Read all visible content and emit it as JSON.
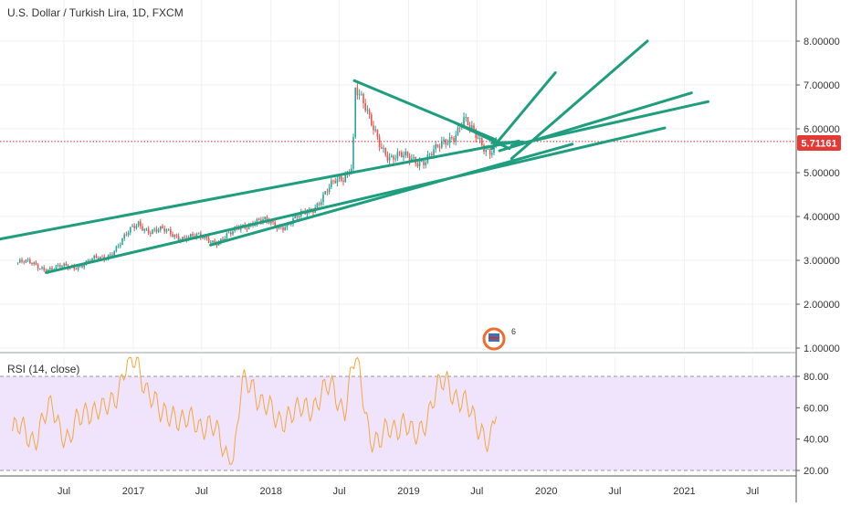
{
  "header": {
    "symbol_title": "U.S. Dollar / Turkish Lira, 1D, FXCM"
  },
  "price_tag": {
    "value": "5.71161",
    "color": "#e53935"
  },
  "watermark": {
    "badge": "6"
  },
  "rsi_panel": {
    "label": "RSI (14, close)"
  },
  "colors": {
    "trendline": "#1e9e7e",
    "up_candle": "#26a69a",
    "down_candle": "#ef5350",
    "rsi_line": "#f5a742",
    "rsi_band": "#efe4fb",
    "price_line": "#d32f2f"
  },
  "chart_data": [
    {
      "type": "candlestick",
      "title": "U.S. Dollar / Turkish Lira, 1D, FXCM",
      "x_ticks": [
        "Jul",
        "2017",
        "Jul",
        "2018",
        "Jul",
        "2019",
        "Jul",
        "2020",
        "Jul",
        "2021",
        "Jul"
      ],
      "y_ticks": [
        "1.00000",
        "2.00000",
        "3.00000",
        "4.00000",
        "5.00000",
        "6.00000",
        "7.00000",
        "8.00000"
      ],
      "ylim": [
        1.0,
        8.9
      ],
      "last_price": 5.71161,
      "grid": true,
      "series": [
        {
          "name": "price",
          "x": [
            "2016-03-01",
            "2016-04-15",
            "2016-06-01",
            "2016-07-15",
            "2016-09-01",
            "2016-10-15",
            "2016-11-15",
            "2016-12-15",
            "2017-01-15",
            "2017-02-15",
            "2017-03-15",
            "2017-04-15",
            "2017-05-15",
            "2017-06-15",
            "2017-07-15",
            "2017-08-15",
            "2017-09-15",
            "2017-10-15",
            "2017-11-15",
            "2017-12-15",
            "2018-01-15",
            "2018-02-15",
            "2018-03-15",
            "2018-04-15",
            "2018-05-15",
            "2018-06-15",
            "2018-07-10",
            "2018-08-05",
            "2018-08-13",
            "2018-09-01",
            "2018-09-20",
            "2018-10-15",
            "2018-11-15",
            "2018-12-15",
            "2019-01-15",
            "2019-02-15",
            "2019-03-15",
            "2019-04-15",
            "2019-05-15",
            "2019-05-25",
            "2019-06-15",
            "2019-07-15",
            "2019-08-05",
            "2019-08-25"
          ],
          "y": [
            2.95,
            2.9,
            2.8,
            2.85,
            2.95,
            3.05,
            3.3,
            3.55,
            3.85,
            3.7,
            3.65,
            3.6,
            3.55,
            3.5,
            3.5,
            3.45,
            3.55,
            3.8,
            3.9,
            3.85,
            3.8,
            3.85,
            3.95,
            4.15,
            4.45,
            4.7,
            4.85,
            5.3,
            7.05,
            6.55,
            6.1,
            5.75,
            5.35,
            5.3,
            5.35,
            5.3,
            5.45,
            5.8,
            6.05,
            6.2,
            5.9,
            5.7,
            5.55,
            5.71
          ]
        }
      ],
      "trendlines": [
        {
          "from": [
            "2016-01-10",
            3.48
          ],
          "to": [
            "2019-10-20",
            5.72
          ]
        },
        {
          "from": [
            "2016-05-15",
            2.72
          ],
          "to": [
            "2020-11-10",
            6.02
          ]
        },
        {
          "from": [
            "2017-07-25",
            3.35
          ],
          "to": [
            "2020-03-10",
            5.65
          ]
        },
        {
          "from": [
            "2019-10-01",
            5.32
          ],
          "to": [
            "2020-09-25",
            8.0
          ]
        },
        {
          "from": [
            "2019-08-10",
            5.55
          ],
          "to": [
            "2020-01-25",
            7.28
          ]
        },
        {
          "from": [
            "2019-08-30",
            5.5
          ],
          "to": [
            "2021-01-20",
            6.82
          ]
        },
        {
          "from": [
            "2019-10-01",
            5.62
          ],
          "to": [
            "2021-03-05",
            6.62
          ]
        },
        {
          "from": [
            "2018-08-10",
            7.1
          ],
          "to": [
            "2019-08-20",
            5.75
          ]
        },
        {
          "from": [
            "2019-05-01",
            6.15
          ],
          "to": [
            "2019-09-25",
            5.55
          ]
        },
        {
          "from": [
            "2019-08-10",
            5.68
          ],
          "to": [
            "2019-11-01",
            5.7
          ]
        }
      ]
    },
    {
      "type": "line",
      "title": "RSI (14, close)",
      "y_ticks": [
        "20.00",
        "40.00",
        "60.00",
        "80.00"
      ],
      "ylim": [
        15,
        95
      ],
      "bands": [
        20,
        80
      ],
      "series": [
        {
          "name": "RSI (14, close)",
          "x": [
            "2016-03-01",
            "2016-04-15",
            "2016-06-01",
            "2016-07-15",
            "2016-09-01",
            "2016-10-15",
            "2016-11-15",
            "2016-12-10",
            "2017-01-10",
            "2017-02-15",
            "2017-03-15",
            "2017-04-15",
            "2017-05-15",
            "2017-06-15",
            "2017-07-15",
            "2017-08-15",
            "2017-09-10",
            "2017-09-25",
            "2017-10-15",
            "2017-11-15",
            "2017-12-15",
            "2018-01-15",
            "2018-02-15",
            "2018-03-15",
            "2018-04-15",
            "2018-05-15",
            "2018-06-15",
            "2018-07-15",
            "2018-08-13",
            "2018-09-01",
            "2018-09-20",
            "2018-10-15",
            "2018-11-15",
            "2018-12-15",
            "2019-01-15",
            "2019-02-15",
            "2019-03-25",
            "2019-04-15",
            "2019-05-15",
            "2019-06-15",
            "2019-07-15",
            "2019-08-05",
            "2019-08-25"
          ],
          "y": [
            45,
            42,
            60,
            38,
            62,
            55,
            70,
            85,
            88,
            70,
            52,
            60,
            48,
            52,
            50,
            40,
            30,
            28,
            72,
            75,
            62,
            50,
            58,
            55,
            62,
            68,
            72,
            60,
            91,
            70,
            45,
            35,
            48,
            52,
            38,
            55,
            72,
            78,
            65,
            55,
            48,
            35,
            60
          ]
        }
      ]
    }
  ]
}
